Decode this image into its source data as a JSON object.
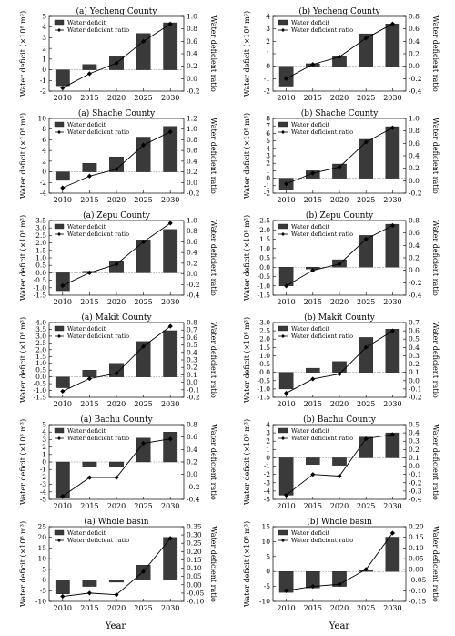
{
  "xlabel": "Year",
  "chart_data": [
    {
      "type": "bar+line",
      "title": "(a) Yecheng County",
      "ylabel": "Water deficit (×10⁸ m³)",
      "y2label": "Water deficient ratio",
      "categories": [
        "2010",
        "2015",
        "2020",
        "2025",
        "2030"
      ],
      "series": [
        {
          "name": "Water deficit",
          "type": "bar",
          "values": [
            -1.5,
            0.5,
            1.3,
            3.4,
            4.4
          ]
        },
        {
          "name": "Water deficient ratio",
          "type": "line",
          "axis": "right",
          "values": [
            -0.15,
            0.08,
            0.25,
            0.6,
            0.88
          ]
        }
      ],
      "ylim": [
        -2,
        5
      ],
      "yticks": [
        -2,
        -1,
        0,
        1,
        2,
        3,
        4,
        5
      ],
      "y2lim": [
        -0.2,
        1.0
      ],
      "y2ticks": [
        -0.2,
        0.0,
        0.2,
        0.4,
        0.6,
        0.8,
        1.0
      ]
    },
    {
      "type": "bar+line",
      "title": "(b) Yecheng County",
      "ylabel": "Water deficit (×10⁸ m³)",
      "y2label": "Water deficient ratio",
      "categories": [
        "2010",
        "2015",
        "2020",
        "2025",
        "2030"
      ],
      "series": [
        {
          "name": "Water deficit",
          "type": "bar",
          "values": [
            -1.6,
            0.2,
            0.8,
            2.6,
            3.4
          ]
        },
        {
          "name": "Water deficient ratio",
          "type": "line",
          "axis": "right",
          "values": [
            -0.2,
            0.03,
            0.15,
            0.45,
            0.68
          ]
        }
      ],
      "ylim": [
        -2,
        4
      ],
      "yticks": [
        -2,
        -1,
        0,
        1,
        2,
        3,
        4
      ],
      "y2lim": [
        -0.4,
        0.8
      ],
      "y2ticks": [
        -0.4,
        -0.2,
        0.0,
        0.2,
        0.4,
        0.6,
        0.8
      ]
    },
    {
      "type": "bar+line",
      "title": "(a) Shache County",
      "ylabel": "Water deficit (×10⁸ m³)",
      "y2label": "Water deficient ratio",
      "categories": [
        "2010",
        "2015",
        "2020",
        "2025",
        "2030"
      ],
      "series": [
        {
          "name": "Water deficit",
          "type": "bar",
          "values": [
            -1.6,
            1.6,
            2.8,
            6.5,
            8.5
          ]
        },
        {
          "name": "Water deficient ratio",
          "type": "line",
          "axis": "right",
          "values": [
            -0.1,
            0.12,
            0.25,
            0.7,
            0.95
          ]
        }
      ],
      "ylim": [
        -4,
        10
      ],
      "yticks": [
        -4,
        -2,
        0,
        2,
        4,
        6,
        8,
        10
      ],
      "y2lim": [
        -0.2,
        1.2
      ],
      "y2ticks": [
        -0.2,
        0.0,
        0.2,
        0.4,
        0.6,
        0.8,
        1.0,
        1.2
      ]
    },
    {
      "type": "bar+line",
      "title": "(b) Shache County",
      "ylabel": "Water deficit (×10⁸ m³)",
      "y2label": "Water deficient ratio",
      "categories": [
        "2010",
        "2015",
        "2020",
        "2025",
        "2030"
      ],
      "series": [
        {
          "name": "Water deficit",
          "type": "bar",
          "values": [
            -1.5,
            1.0,
            1.9,
            5.2,
            6.9
          ]
        },
        {
          "name": "Water deficient ratio",
          "type": "line",
          "axis": "right",
          "values": [
            -0.05,
            0.12,
            0.22,
            0.62,
            0.85
          ]
        }
      ],
      "ylim": [
        -2,
        8
      ],
      "yticks": [
        -2,
        -1,
        0,
        1,
        2,
        3,
        4,
        5,
        6,
        7,
        8
      ],
      "y2lim": [
        -0.2,
        1.0
      ],
      "y2ticks": [
        -0.2,
        0.0,
        0.2,
        0.4,
        0.6,
        0.8,
        1.0
      ]
    },
    {
      "type": "bar+line",
      "title": "(a) Zepu County",
      "ylabel": "Water deficit (×10⁸ m³)",
      "y2label": "Water deficient ratio",
      "categories": [
        "2010",
        "2015",
        "2020",
        "2025",
        "2030"
      ],
      "series": [
        {
          "name": "Water deficit",
          "type": "bar",
          "values": [
            -1.2,
            0.1,
            0.8,
            2.2,
            2.9
          ]
        },
        {
          "name": "Water deficient ratio",
          "type": "line",
          "axis": "right",
          "values": [
            -0.22,
            0.02,
            0.18,
            0.6,
            0.95
          ]
        }
      ],
      "ylim": [
        -1.5,
        3.5
      ],
      "yticks": [
        -1.5,
        -1.0,
        -0.5,
        0.0,
        0.5,
        1.0,
        1.5,
        2.0,
        2.5,
        3.0,
        3.5
      ],
      "y2lim": [
        -0.4,
        1.0
      ],
      "y2ticks": [
        -0.4,
        -0.2,
        0.0,
        0.2,
        0.4,
        0.6,
        0.8,
        1.0
      ]
    },
    {
      "type": "bar+line",
      "title": "(b) Zepu County",
      "ylabel": "Water deficit (×10⁸ m³)",
      "y2label": "Water deficient ratio",
      "categories": [
        "2010",
        "2015",
        "2020",
        "2025",
        "2030"
      ],
      "series": [
        {
          "name": "Water deficit",
          "type": "bar",
          "values": [
            -1.0,
            -0.1,
            0.4,
            1.7,
            2.3
          ]
        },
        {
          "name": "Water deficient ratio",
          "type": "line",
          "axis": "right",
          "values": [
            -0.25,
            0.0,
            0.1,
            0.5,
            0.72
          ]
        }
      ],
      "ylim": [
        -1.5,
        2.5
      ],
      "yticks": [
        -1.5,
        -1.0,
        -0.5,
        0.0,
        0.5,
        1.0,
        1.5,
        2.0,
        2.5
      ],
      "y2lim": [
        -0.4,
        0.8
      ],
      "y2ticks": [
        -0.4,
        -0.2,
        0.0,
        0.2,
        0.4,
        0.6,
        0.8
      ]
    },
    {
      "type": "bar+line",
      "title": "(a) Makit County",
      "ylabel": "Water deficit (×10⁸ m³)",
      "y2label": "Water deficient ratio",
      "categories": [
        "2010",
        "2015",
        "2020",
        "2025",
        "2030"
      ],
      "series": [
        {
          "name": "Water deficit",
          "type": "bar",
          "values": [
            -0.8,
            0.5,
            1.0,
            2.6,
            3.4
          ]
        },
        {
          "name": "Water deficient ratio",
          "type": "line",
          "axis": "right",
          "values": [
            -0.12,
            0.05,
            0.12,
            0.48,
            0.75
          ]
        }
      ],
      "ylim": [
        -1.5,
        4.0
      ],
      "yticks": [
        -1.5,
        -1.0,
        -0.5,
        0.0,
        0.5,
        1.0,
        1.5,
        2.0,
        2.5,
        3.0,
        3.5,
        4.0
      ],
      "y2lim": [
        -0.2,
        0.8
      ],
      "y2ticks": [
        -0.2,
        -0.1,
        0.0,
        0.1,
        0.2,
        0.3,
        0.4,
        0.5,
        0.6,
        0.7,
        0.8
      ]
    },
    {
      "type": "bar+line",
      "title": "(b) Makit County",
      "ylabel": "Water deficit (×10⁸ m³)",
      "y2label": "Water deficient ratio",
      "categories": [
        "2010",
        "2015",
        "2020",
        "2025",
        "2030"
      ],
      "series": [
        {
          "name": "Water deficit",
          "type": "bar",
          "values": [
            -1.0,
            0.25,
            0.65,
            2.1,
            2.6
          ]
        },
        {
          "name": "Water deficient ratio",
          "type": "line",
          "axis": "right",
          "values": [
            -0.15,
            0.02,
            0.08,
            0.4,
            0.6
          ]
        }
      ],
      "ylim": [
        -1.5,
        3.0
      ],
      "yticks": [
        -1.5,
        -1.0,
        -0.5,
        0.0,
        0.5,
        1.0,
        1.5,
        2.0,
        2.5,
        3.0
      ],
      "y2lim": [
        -0.2,
        0.7
      ],
      "y2ticks": [
        -0.2,
        -0.1,
        0.0,
        0.1,
        0.2,
        0.3,
        0.4,
        0.5,
        0.6,
        0.7
      ]
    },
    {
      "type": "bar+line",
      "title": "(a) Bachu County",
      "ylabel": "Water deficit (×10⁸ m³)",
      "y2label": "Water deficient ratio",
      "categories": [
        "2010",
        "2015",
        "2020",
        "2025",
        "2030"
      ],
      "series": [
        {
          "name": "Water deficit",
          "type": "bar",
          "values": [
            -4.8,
            -0.6,
            -0.6,
            3.2,
            4.0
          ]
        },
        {
          "name": "Water deficient ratio",
          "type": "line",
          "axis": "right",
          "values": [
            -0.35,
            -0.05,
            -0.05,
            0.5,
            0.57
          ]
        }
      ],
      "ylim": [
        -5,
        5
      ],
      "yticks": [
        -5,
        -4,
        -3,
        -2,
        -1,
        0,
        1,
        2,
        3,
        4,
        5
      ],
      "y2lim": [
        -0.4,
        0.8
      ],
      "y2ticks": [
        -0.4,
        -0.2,
        0.0,
        0.2,
        0.4,
        0.6,
        0.8
      ]
    },
    {
      "type": "bar+line",
      "title": "(b) Bachu County",
      "ylabel": "Water deficit (×10⁸ m³)",
      "y2label": "Water deficient ratio",
      "categories": [
        "2010",
        "2015",
        "2020",
        "2025",
        "2030"
      ],
      "series": [
        {
          "name": "Water deficit",
          "type": "bar",
          "values": [
            -4.5,
            -0.8,
            -0.9,
            2.5,
            3.0
          ]
        },
        {
          "name": "Water deficient ratio",
          "type": "line",
          "axis": "right",
          "values": [
            -0.35,
            -0.1,
            -0.12,
            0.33,
            0.38
          ]
        }
      ],
      "ylim": [
        -5,
        4
      ],
      "yticks": [
        -5,
        -4,
        -3,
        -2,
        -1,
        0,
        1,
        2,
        3,
        4
      ],
      "y2lim": [
        -0.4,
        0.5
      ],
      "y2ticks": [
        -0.4,
        -0.3,
        -0.2,
        -0.1,
        0.0,
        0.1,
        0.2,
        0.3,
        0.4,
        0.5
      ]
    },
    {
      "type": "bar+line",
      "title": "(a) Whole basin",
      "ylabel": "Water deficit (×10⁸ m³)",
      "y2label": "Water deficient ratio",
      "categories": [
        "2010",
        "2015",
        "2020",
        "2025",
        "2030"
      ],
      "series": [
        {
          "name": "Water deficit",
          "type": "bar",
          "values": [
            -6.5,
            -3.0,
            -1.0,
            7.0,
            20.0
          ]
        },
        {
          "name": "Water deficient ratio",
          "type": "line",
          "axis": "right",
          "values": [
            -0.07,
            -0.05,
            -0.06,
            0.08,
            0.28
          ]
        }
      ],
      "ylim": [
        -10,
        25
      ],
      "yticks": [
        -10,
        -5,
        0,
        5,
        10,
        15,
        20,
        25
      ],
      "y2lim": [
        -0.1,
        0.35
      ],
      "y2ticks": [
        -0.1,
        -0.05,
        0.0,
        0.05,
        0.1,
        0.15,
        0.2,
        0.25,
        0.3,
        0.35
      ]
    },
    {
      "type": "bar+line",
      "title": "(b) Whole basin",
      "ylabel": "Water deficit (×10⁸ m³)",
      "y2label": "Water deficient ratio",
      "categories": [
        "2010",
        "2015",
        "2020",
        "2025",
        "2030"
      ],
      "series": [
        {
          "name": "Water deficit",
          "type": "bar",
          "values": [
            -7.0,
            -5.5,
            -5.0,
            0.3,
            11.5
          ]
        },
        {
          "name": "Water deficient ratio",
          "type": "line",
          "axis": "right",
          "values": [
            -0.1,
            -0.08,
            -0.07,
            0.0,
            0.17
          ]
        }
      ],
      "ylim": [
        -10,
        15
      ],
      "yticks": [
        -10,
        -5,
        0,
        5,
        10,
        15
      ],
      "y2lim": [
        -0.15,
        0.2
      ],
      "y2ticks": [
        -0.15,
        -0.1,
        -0.05,
        0.0,
        0.05,
        0.1,
        0.15,
        0.2
      ]
    }
  ]
}
